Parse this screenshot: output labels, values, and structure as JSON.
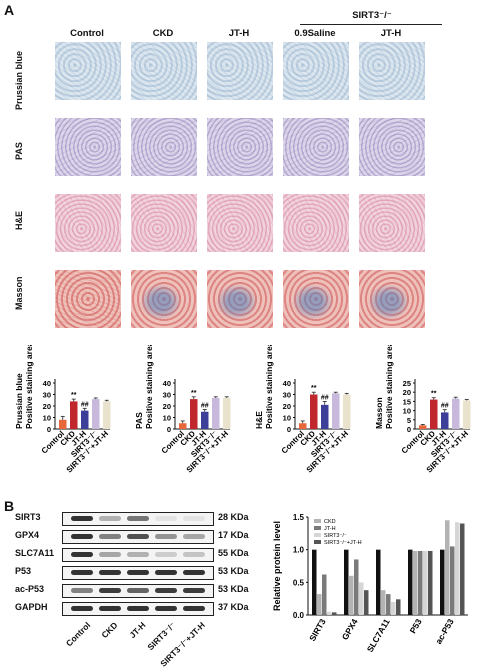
{
  "panel_a": {
    "label": "A",
    "group_header": "SIRT3⁻/⁻",
    "columns": [
      "Control",
      "CKD",
      "JT-H",
      "0.9Saline",
      "JT-H"
    ],
    "rows": [
      "Prussian blue",
      "PAS",
      "H&E",
      "Masson"
    ]
  },
  "panel_b": {
    "label": "B",
    "proteins": [
      "SIRT3",
      "GPX4",
      "SLC7A11",
      "P53",
      "ac-P53",
      "GAPDH"
    ],
    "kda": [
      "28 KDa",
      "17 KDa",
      "55 KDa",
      "53 KDa",
      "53 KDa",
      "37 KDa"
    ],
    "lanes": [
      "Control",
      "CKD",
      "JT-H",
      "SIRT3⁻/⁻",
      "SIRT3⁻/⁻+JT-H"
    ]
  },
  "chart_data": [
    {
      "type": "bar",
      "title": "",
      "ylabel": "Prussian blue\nPositive staining area(%)",
      "ylim": [
        0,
        40
      ],
      "yticks": [
        0,
        10,
        20,
        30,
        40
      ],
      "categories": [
        "Control",
        "CKD",
        "JT-H",
        "SIRT3⁻/⁻",
        "SIRT3⁻/⁻+JT-H"
      ],
      "values": [
        8,
        24,
        16,
        26,
        24
      ],
      "errors": [
        3,
        2,
        2,
        1,
        1
      ],
      "annotations": [
        "",
        "**",
        "##",
        "",
        ""
      ],
      "colors": [
        "#e8673a",
        "#c0282d",
        "#3d3d9a",
        "#c7b8dc",
        "#e9e2cc"
      ]
    },
    {
      "type": "bar",
      "title": "",
      "ylabel": "PAS\nPositive staining area(%)",
      "ylim": [
        0,
        40
      ],
      "yticks": [
        0,
        10,
        20,
        30,
        40
      ],
      "categories": [
        "Control",
        "CKD",
        "JT-H",
        "SIRT3⁻/⁻",
        "SIRT3⁻/⁻+JT-H"
      ],
      "values": [
        5,
        26,
        15,
        27,
        27
      ],
      "errors": [
        2,
        2,
        2,
        1,
        1
      ],
      "annotations": [
        "",
        "**",
        "##",
        "",
        ""
      ],
      "colors": [
        "#e8673a",
        "#c0282d",
        "#3d3d9a",
        "#c7b8dc",
        "#e9e2cc"
      ]
    },
    {
      "type": "bar",
      "title": "",
      "ylabel": "H&E\nPositive staining area(%)",
      "ylim": [
        0,
        40
      ],
      "yticks": [
        0,
        10,
        20,
        30,
        40
      ],
      "categories": [
        "Control",
        "CKD",
        "JT-H",
        "SIRT3⁻/⁻",
        "SIRT3⁻/⁻+JT-H"
      ],
      "values": [
        5,
        30,
        21,
        31,
        30
      ],
      "errors": [
        2,
        2,
        3,
        1,
        1
      ],
      "annotations": [
        "",
        "**",
        "##",
        "",
        ""
      ],
      "colors": [
        "#e8673a",
        "#c0282d",
        "#3d3d9a",
        "#c7b8dc",
        "#e9e2cc"
      ]
    },
    {
      "type": "bar",
      "title": "",
      "ylabel": "Masson\nPositive staining area(%)",
      "ylim": [
        0,
        25
      ],
      "yticks": [
        0,
        5,
        10,
        15,
        20,
        25
      ],
      "categories": [
        "Control",
        "CKD",
        "JT-H",
        "SIRT3⁻/⁻",
        "SIRT3⁻/⁻+JT-H"
      ],
      "values": [
        2,
        16,
        9,
        16.5,
        15.5
      ],
      "errors": [
        0.5,
        1,
        1.5,
        0.8,
        0.6
      ],
      "annotations": [
        "",
        "**",
        "##",
        "",
        ""
      ],
      "colors": [
        "#e8673a",
        "#c0282d",
        "#3d3d9a",
        "#c7b8dc",
        "#e9e2cc"
      ]
    },
    {
      "type": "bar",
      "title": "",
      "ylabel": "Relative protein level",
      "ylim": [
        0,
        1.5
      ],
      "yticks": [
        0.0,
        0.5,
        1.0,
        1.5
      ],
      "categories": [
        "SIRT3",
        "GPX4",
        "SLC7A11",
        "P53",
        "ac-P53"
      ],
      "series": [
        {
          "name": "Control",
          "values": [
            1.0,
            1.0,
            1.0,
            1.0,
            1.0
          ],
          "color": "#111111"
        },
        {
          "name": "CKD",
          "values": [
            0.32,
            0.6,
            0.38,
            0.98,
            1.45
          ],
          "color": "#b3b3b3"
        },
        {
          "name": "JT-H",
          "values": [
            0.62,
            0.85,
            0.32,
            0.98,
            1.05
          ],
          "color": "#7a7a7a"
        },
        {
          "name": "SIRT3⁻/⁻",
          "values": [
            0.05,
            0.5,
            0.2,
            0.98,
            1.42
          ],
          "color": "#d6d6d6"
        },
        {
          "name": "SIRT3⁻/⁻+JT-H",
          "values": [
            0.04,
            0.38,
            0.24,
            0.98,
            1.4
          ],
          "color": "#555555"
        }
      ],
      "legend": "top-left"
    }
  ]
}
